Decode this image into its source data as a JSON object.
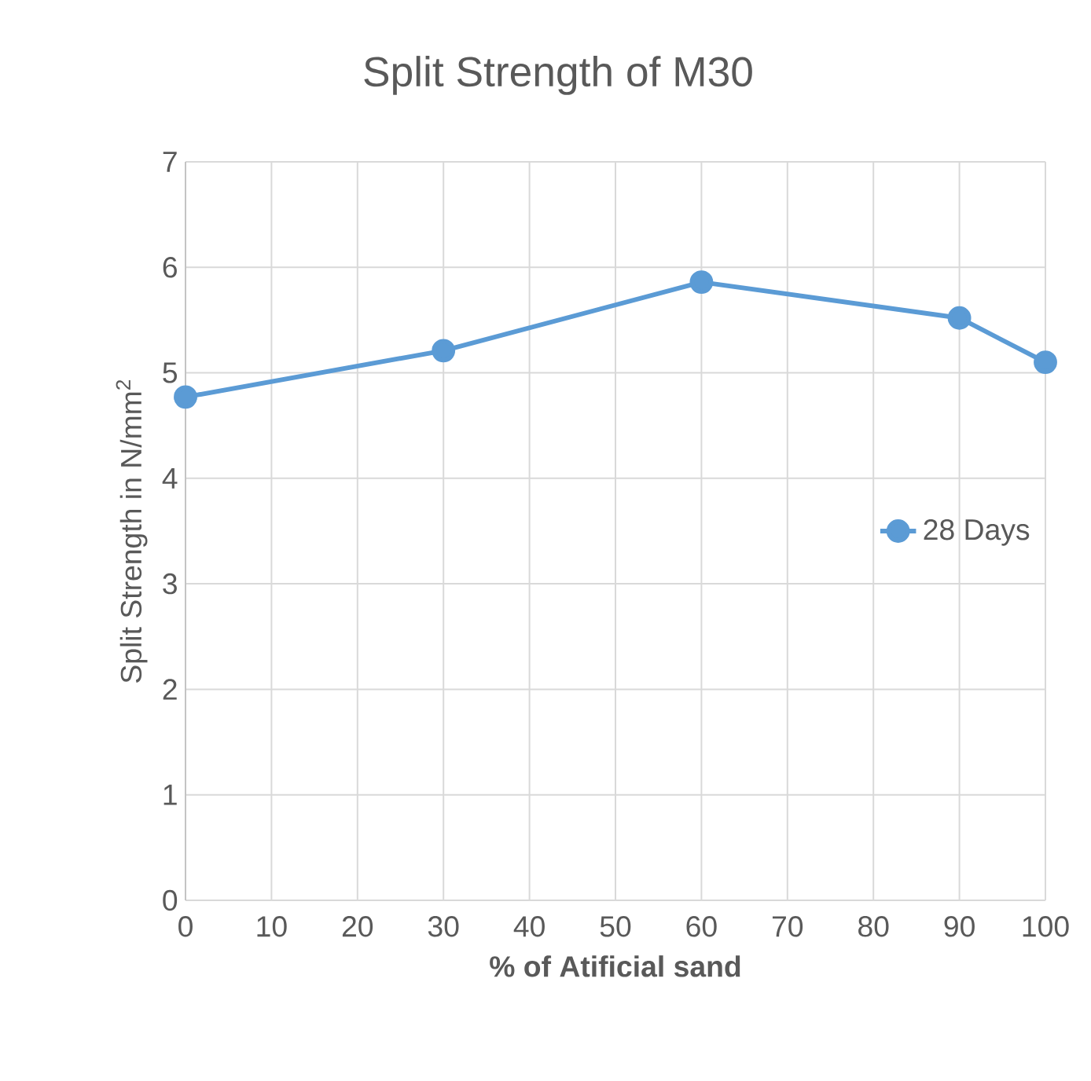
{
  "chart_data": {
    "type": "line",
    "title": "Split  Strength of M30",
    "xlabel": "% of Atificial sand",
    "ylabel": "Split Strength in N/mm$^{2}$",
    "x": [
      0,
      30,
      60,
      90,
      100
    ],
    "series": [
      {
        "name": "28 Days",
        "color": "#5b9bd5",
        "values": [
          4.77,
          5.21,
          5.86,
          5.52,
          5.1
        ]
      }
    ],
    "xlim": [
      0,
      100
    ],
    "xticks": [
      0,
      10,
      20,
      30,
      40,
      50,
      60,
      70,
      80,
      90,
      100
    ],
    "ylim": [
      0,
      7
    ],
    "yticks": [
      0,
      1,
      2,
      3,
      4,
      5,
      6,
      7
    ],
    "grid": true,
    "legend": "right",
    "marker": "circle",
    "line_style": "solid"
  }
}
